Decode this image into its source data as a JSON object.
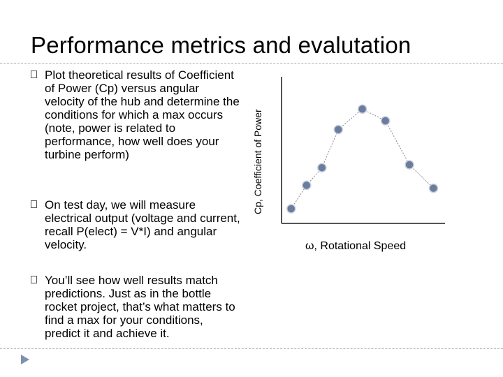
{
  "slide": {
    "title": "Performance metrics and evalutation",
    "bullets": [
      {
        "icon": "box-bullet-icon",
        "text": "Plot  theoretical results of Coefficient of Power (Cp) versus angular velocity of the hub and determine the conditions for which a max occurs (note, power is related to performance, how well does your turbine perform)"
      },
      {
        "icon": "box-bullet-icon",
        "text": "On test day, we will measure electrical output (voltage and current, recall P(elect) = V*I) and angular velocity."
      },
      {
        "icon": "box-bullet-icon",
        "text": "You’ll see how well results match predictions.  Just as in the bottle rocket project, that’s what matters to find a max for your conditions, predict it and achieve it."
      }
    ]
  },
  "chart_data": {
    "type": "scatter",
    "title": "",
    "xlabel": "ω, Rotational Speed",
    "ylabel": "Cp, Coefficient of Power",
    "x": [
      1.0,
      2.6,
      4.2,
      5.9,
      8.4,
      10.8,
      13.3,
      15.8
    ],
    "y": [
      1.0,
      2.6,
      3.8,
      6.4,
      7.8,
      7.0,
      4.0,
      2.4
    ],
    "xlim": [
      0,
      17
    ],
    "ylim": [
      0,
      10
    ],
    "marker_color": "#6b7c9c",
    "connector_color": "#8a8a8a",
    "grid": false,
    "ticks": false
  }
}
